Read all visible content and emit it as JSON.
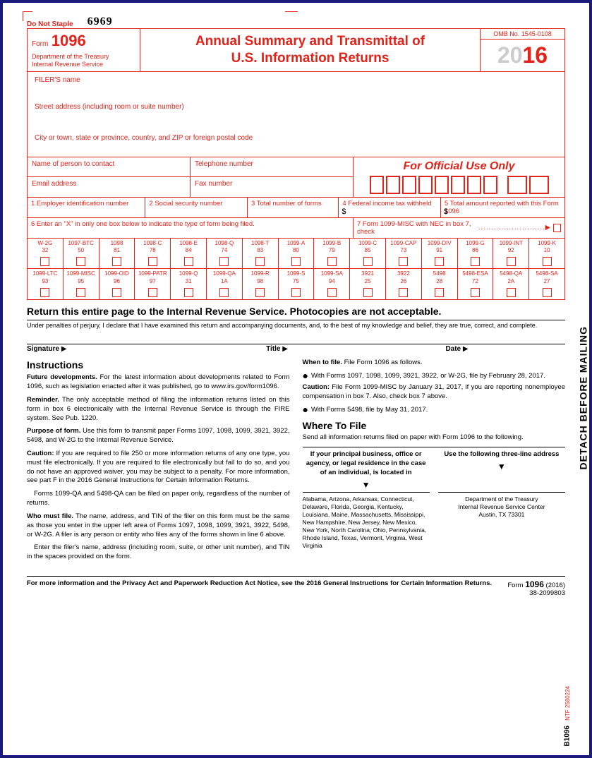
{
  "meta": {
    "do_not_staple": "Do Not Staple",
    "handwritten_number": "6969",
    "detach_text": "DETACH BEFORE MAILING",
    "ntf_code": "NTF 2580224",
    "b1096": "B1096"
  },
  "header": {
    "form_word": "Form",
    "form_number": "1096",
    "dept_line1": "Department of the Treasury",
    "dept_line2": "Internal Revenue Service",
    "title_line1": "Annual Summary and Transmittal of",
    "title_line2": "U.S. Information Returns",
    "omb": "OMB No. 1545-0108",
    "year_prefix": "20",
    "year_suffix": "16"
  },
  "filer": {
    "name_label": "FILER'S name",
    "street_label": "Street address (including room or suite number)",
    "city_label": "City or town, state or province, country, and ZIP or foreign postal code"
  },
  "contact": {
    "person_label": "Name of person to contact",
    "phone_label": "Telephone number",
    "email_label": "Email address",
    "fax_label": "Fax number",
    "official_use": "For Official Use Only"
  },
  "numbered": {
    "b1": "1  Employer identification number",
    "b2": "2  Social security number",
    "b3": "3  Total number of forms",
    "b4": "4  Federal income tax withheld",
    "b5": "5  Total amount reported with this Form 1096"
  },
  "line6": {
    "left": "6  Enter an \"X\" in only one box below to indicate the type of form being filed.",
    "right": "7  Form 1099-MISC with NEC in box 7, check",
    "dots": "..........................",
    "arrow": "▶"
  },
  "checkboxes_row1": [
    {
      "label": "W-2G",
      "code": "32"
    },
    {
      "label": "1097-BTC",
      "code": "50"
    },
    {
      "label": "1098",
      "code": "81"
    },
    {
      "label": "1098-C",
      "code": "78"
    },
    {
      "label": "1098-E",
      "code": "84"
    },
    {
      "label": "1098-Q",
      "code": "74"
    },
    {
      "label": "1098-T",
      "code": "83"
    },
    {
      "label": "1099-A",
      "code": "80"
    },
    {
      "label": "1099-B",
      "code": "79"
    },
    {
      "label": "1099-C",
      "code": "85"
    },
    {
      "label": "1099-CAP",
      "code": "73"
    },
    {
      "label": "1099-DIV",
      "code": "91"
    },
    {
      "label": "1099-G",
      "code": "86"
    },
    {
      "label": "1099-INT",
      "code": "92"
    },
    {
      "label": "1099-K",
      "code": "10"
    }
  ],
  "checkboxes_row2": [
    {
      "label": "1099-LTC",
      "code": "93"
    },
    {
      "label": "1099-MISC",
      "code": "95"
    },
    {
      "label": "1099-OID",
      "code": "96"
    },
    {
      "label": "1099-PATR",
      "code": "97"
    },
    {
      "label": "1099-Q",
      "code": "31"
    },
    {
      "label": "1099-QA",
      "code": "1A"
    },
    {
      "label": "1099-R",
      "code": "98"
    },
    {
      "label": "1099-S",
      "code": "75"
    },
    {
      "label": "1099-SA",
      "code": "94"
    },
    {
      "label": "3921",
      "code": "25"
    },
    {
      "label": "3922",
      "code": "26"
    },
    {
      "label": "5498",
      "code": "28"
    },
    {
      "label": "5498-ESA",
      "code": "72"
    },
    {
      "label": "5498-QA",
      "code": "2A"
    },
    {
      "label": "5498-SA",
      "code": "27"
    }
  ],
  "return_line": "Return this entire page to the Internal Revenue Service. Photocopies are not acceptable.",
  "perjury": "Under penalties of perjury, I declare that I have examined this return and accompanying documents, and, to the best of my knowledge and belief, they are true, correct, and complete.",
  "signature": {
    "sig": "Signature",
    "title": "Title",
    "date": "Date",
    "arrow": "▶"
  },
  "instructions": {
    "heading": "Instructions",
    "future_b": "Future developments.",
    "future": " For the latest information about developments related to Form 1096, such as legislation enacted after it was published, go to www.irs.gov/form1096.",
    "reminder_b": "Reminder.",
    "reminder": " The only acceptable method of filing the information returns listed on this form in box 6 electronically with the Internal Revenue Service is through the FIRE system. See Pub. 1220.",
    "purpose_b": "Purpose of form.",
    "purpose": " Use this form to transmit paper Forms 1097, 1098, 1099, 3921, 3922, 5498, and W-2G to the Internal Revenue Service.",
    "caution1_b": "Caution:",
    "caution1": " If you are required to file 250 or more information returns of any one type, you must file electronically. If you are required to file electronically but fail to do so, and you do not have an approved waiver, you may be subject to a penalty. For more information, see part F in the 2016 General Instructions for Certain Information Returns.",
    "qa": "Forms 1099-QA and 5498-QA can be filed on paper only, regardless of the number of returns.",
    "who_b": "Who must file.",
    "who": " The name, address, and TIN of the filer on this form must be the same as those you enter in the upper left area of Forms 1097, 1098, 1099, 3921, 3922, 5498, or W-2G. A filer is any person or entity who files any of the forms shown in line 6 above.",
    "enter": "Enter the filer's name, address (including room, suite, or other unit number), and TIN in the spaces provided on the form.",
    "when_b": "When to file.",
    "when": " File Form 1096 as follows.",
    "bullet1": "With Forms 1097, 1098, 1099, 3921, 3922, or W-2G, file by February 28, 2017.",
    "caution2_b": "Caution:",
    "caution2": " File Form 1099-MISC by January 31, 2017, if you are reporting nonemployee compensation in box 7. Also, check box 7 above.",
    "bullet2": "With Forms 5498, file by May 31, 2017.",
    "where_heading": "Where To File",
    "where_intro": "Send all information returns filed on paper with Form 1096 to the following.",
    "where_hdr_left": "If your principal business, office or agency, or legal residence in the case of an individual, is located in",
    "where_hdr_right": "Use the following three-line address",
    "states": "Alabama, Arizona, Arkansas, Connecticut, Delaware, Florida, Georgia, Kentucky, Louisiana, Maine, Massachusetts, Mississippi, New Hampshire, New Jersey, New Mexico, New York, North Carolina, Ohio, Pennsylvania, Rhode Island, Texas, Vermont, Virginia, West Virginia",
    "addr1": "Department of the Treasury",
    "addr2": "Internal Revenue Service Center",
    "addr3": "Austin, TX 73301"
  },
  "footer": {
    "left": "For more information and the Privacy Act and Paperwork Reduction Act Notice, see the 2016 General Instructions for Certain Information Returns.",
    "form_word": "Form",
    "form_num": "1096",
    "form_year": "(2016)",
    "code": "38-2099803"
  }
}
